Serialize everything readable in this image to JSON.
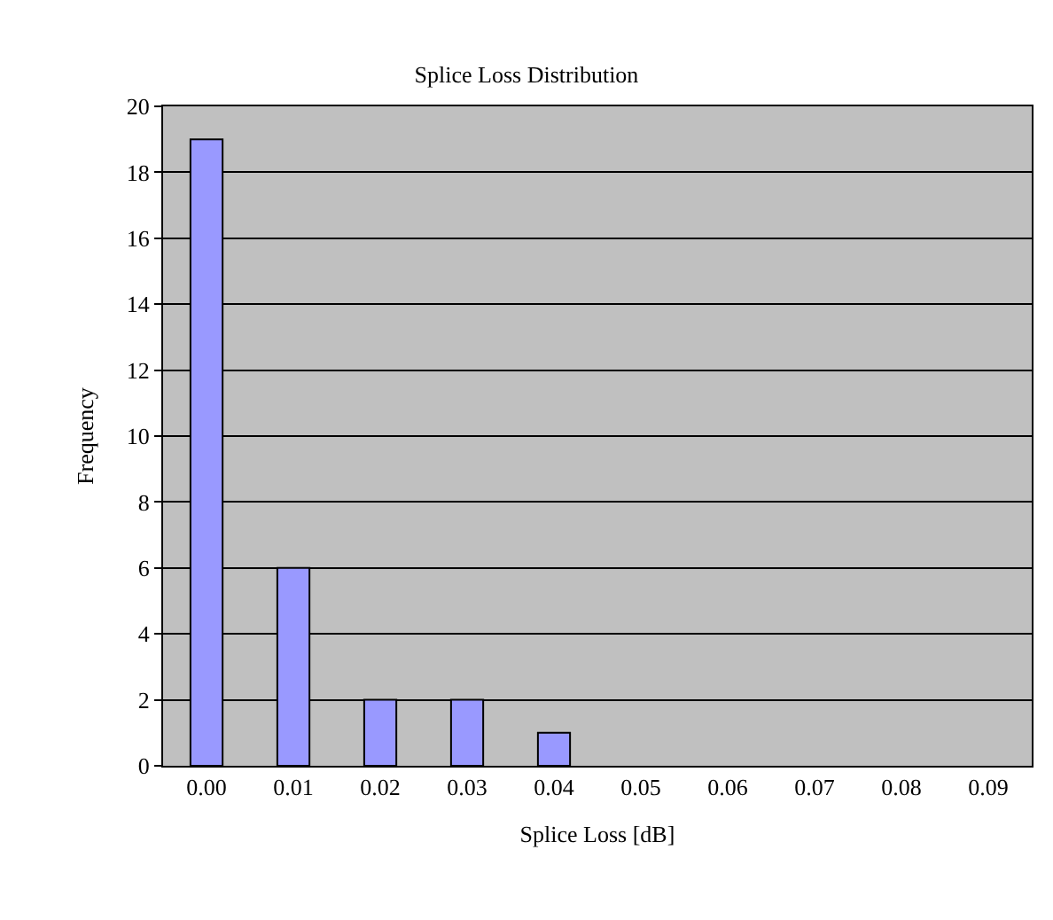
{
  "chart_data": {
    "type": "bar",
    "title": "Splice Loss Distribution",
    "xlabel": "Splice Loss [dB]",
    "ylabel": "Frequency",
    "categories": [
      "0.00",
      "0.01",
      "0.02",
      "0.03",
      "0.04",
      "0.05",
      "0.06",
      "0.07",
      "0.08",
      "0.09"
    ],
    "values": [
      19,
      6,
      2,
      2,
      1,
      0,
      0,
      0,
      0,
      0
    ],
    "color": "#9999ff",
    "ylim": [
      0,
      20
    ],
    "yticks": [
      0,
      2,
      4,
      6,
      8,
      10,
      12,
      14,
      16,
      18,
      20
    ],
    "grid": "y"
  }
}
